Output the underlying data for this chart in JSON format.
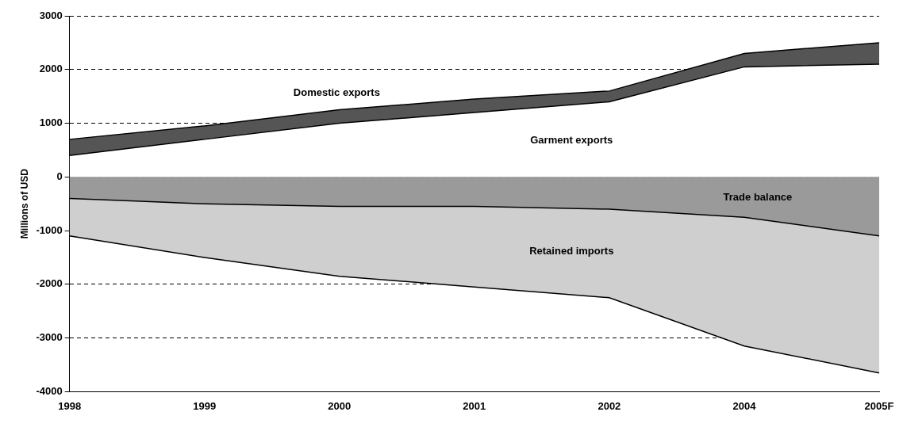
{
  "chart_data": {
    "type": "area",
    "ylabel": "Millions of USD",
    "categories": [
      "1998",
      "1999",
      "2000",
      "2001",
      "2002",
      "2004",
      "2005F"
    ],
    "series": [
      {
        "name": "Garment exports",
        "color": "#ffffff",
        "values": [
          400,
          700,
          1000,
          1200,
          1400,
          2050,
          2100
        ]
      },
      {
        "name": "Domestic exports",
        "color": "#555555",
        "values": [
          700,
          950,
          1250,
          1450,
          1600,
          2300,
          2500
        ]
      },
      {
        "name": "Trade balance",
        "color": "#9a9a9a",
        "values": [
          -400,
          -500,
          -550,
          -550,
          -600,
          -750,
          -1100
        ]
      },
      {
        "name": "Retained imports",
        "color": "#cfcfcf",
        "values": [
          -1100,
          -1500,
          -1850,
          -2050,
          -2250,
          -3150,
          -3650
        ]
      }
    ],
    "ylim": [
      -4000,
      3000
    ],
    "yticks": [
      -4000,
      -3000,
      -2000,
      -1000,
      0,
      1000,
      2000,
      3000
    ],
    "grid": "y",
    "legend": false
  }
}
